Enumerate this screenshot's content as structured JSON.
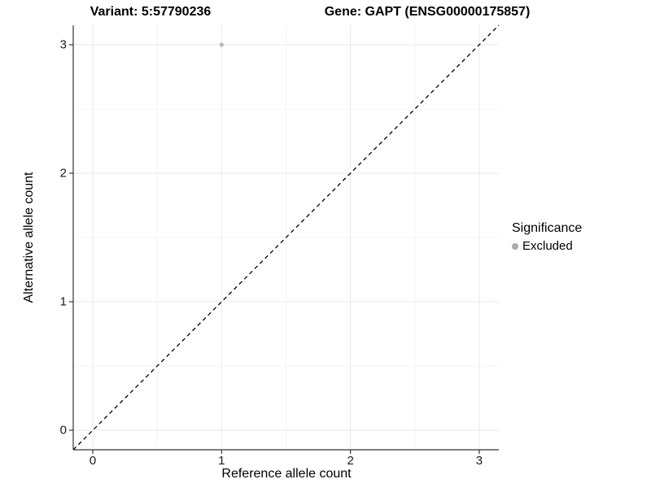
{
  "chart_data": {
    "type": "scatter",
    "title_left": "Variant: 5:57790236",
    "title_right": "Gene: GAPT (ENSG00000175857)",
    "xlabel": "Reference allele count",
    "ylabel": "Alternative allele count",
    "xlim": [
      -0.152,
      3.152
    ],
    "ylim": [
      -0.152,
      3.152
    ],
    "x_ticks": [
      0,
      1,
      2,
      3
    ],
    "y_ticks": [
      0,
      1,
      2,
      3
    ],
    "x_minor_ticks": [
      0.5,
      1.5,
      2.5
    ],
    "y_minor_ticks": [
      0.5,
      1.5,
      2.5
    ],
    "grid": "major and minor, light gray, on white panel",
    "series": [
      {
        "name": "Excluded",
        "marker": "dot",
        "color": "#b8b8b8",
        "points": [
          {
            "x": 1,
            "y": 3
          }
        ]
      }
    ],
    "abline": {
      "slope": 1,
      "intercept": 0,
      "style": "dashed",
      "color": "#000000"
    },
    "legend": {
      "title": "Significance",
      "position": "right",
      "items": [
        {
          "label": "Excluded",
          "color": "#aaaaaa",
          "marker": "dot"
        }
      ]
    },
    "colors": {
      "axis_line": "#333333",
      "tick_mark": "#333333",
      "grid_major": "#e9e9e9",
      "grid_minor": "#f4f4f4",
      "point": "#b8b8b8",
      "text": "#000000"
    }
  }
}
